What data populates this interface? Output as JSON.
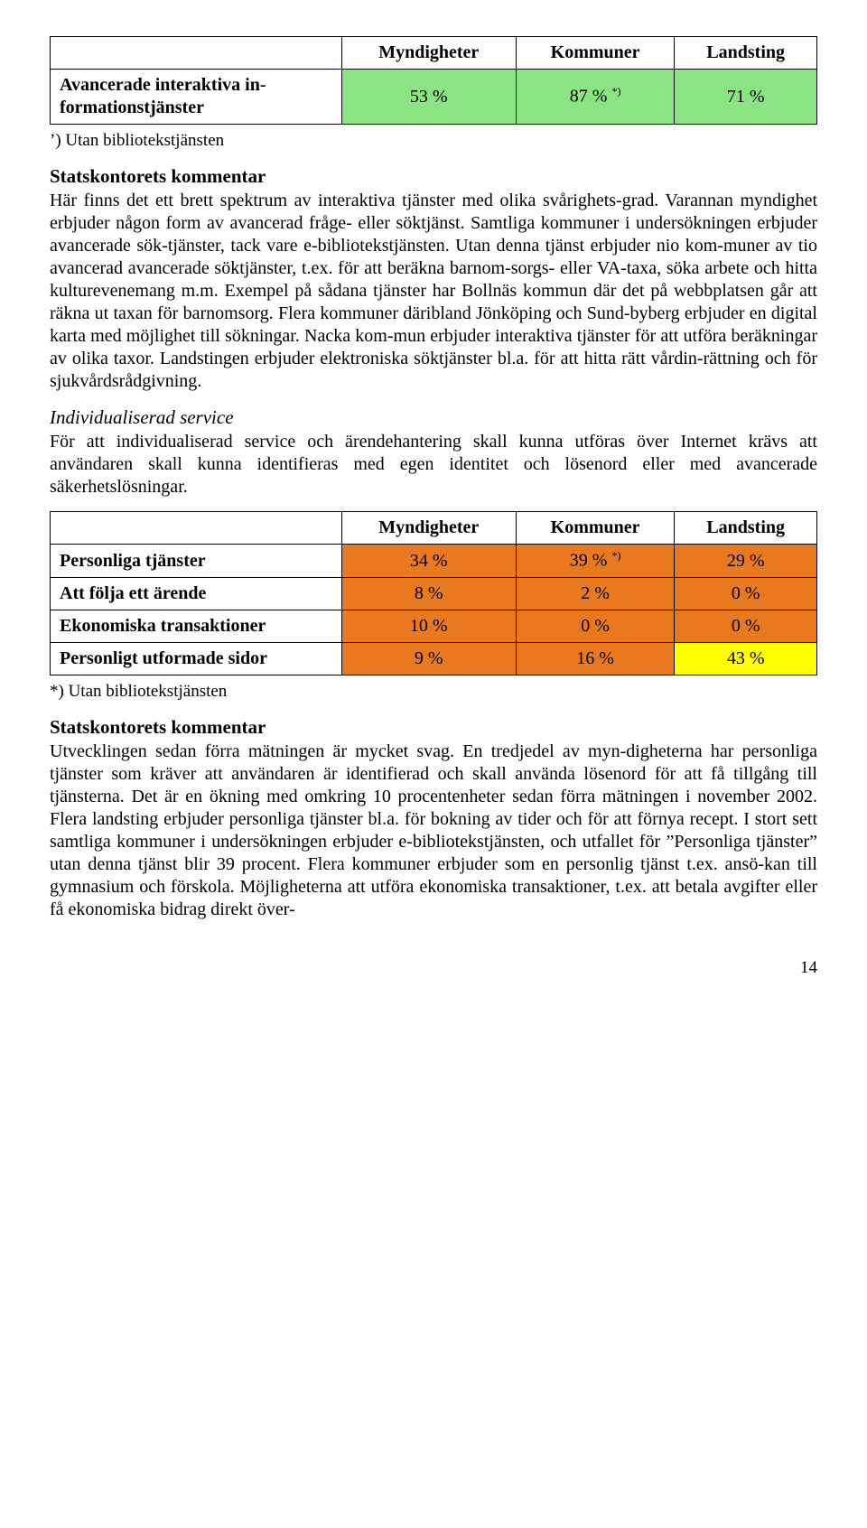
{
  "table1": {
    "headers": [
      "Myndigheter",
      "Kommuner",
      "Landsting"
    ],
    "row_label": "Avancerade interaktiva in-formationstjänster",
    "cells": [
      "53 %",
      "87 %",
      "71 %"
    ],
    "sup": "*)",
    "header_bg": "#ffffff",
    "row_bg": "#8ae482",
    "footnote": "’) Utan bibliotekstjänsten"
  },
  "comment1": {
    "heading": "Statskontorets kommentar",
    "text": "Här finns det ett brett spektrum av interaktiva tjänster med olika svårighets-grad. Varannan myndighet erbjuder någon form av avancerad fråge- eller söktjänst. Samtliga kommuner i undersökningen erbjuder avancerade sök-tjänster, tack vare e-bibliotekstjänsten. Utan denna tjänst erbjuder nio kom-muner av tio avancerad avancerade söktjänster, t.ex. för att beräkna barnom-sorgs- eller VA-taxa, söka arbete och hitta kulturevenemang m.m. Exempel på sådana tjänster har Bollnäs kommun där det på webbplatsen går att räkna ut taxan för barnomsorg. Flera kommuner däribland Jönköping och Sund-byberg erbjuder en digital karta med möjlighet till sökningar. Nacka kom-mun erbjuder interaktiva tjänster för att utföra beräkningar av olika taxor. Landstingen erbjuder elektroniska söktjänster bl.a. för att hitta rätt vårdin-rättning och för sjukvårdsrådgivning."
  },
  "section2": {
    "heading": "Individualiserad service",
    "text": "För att individualiserad service och ärendehantering skall kunna utföras över Internet krävs att användaren skall kunna identifieras med egen identitet och lösenord eller med avancerade säkerhetslösningar."
  },
  "table2": {
    "headers": [
      "Myndigheter",
      "Kommuner",
      "Landsting"
    ],
    "rows": [
      {
        "label": "Personliga tjänster",
        "cells": [
          "34 %",
          "39 %",
          "29 %"
        ],
        "colors": [
          "#e8791e",
          "#e8791e",
          "#e8791e"
        ],
        "sup_idx": 1
      },
      {
        "label": "Att följa ett ärende",
        "cells": [
          "8 %",
          "2 %",
          "0 %"
        ],
        "colors": [
          "#e8791e",
          "#e8791e",
          "#e8791e"
        ]
      },
      {
        "label": "Ekonomiska transaktioner",
        "cells": [
          "10 %",
          "0 %",
          "0 %"
        ],
        "colors": [
          "#e8791e",
          "#e8791e",
          "#e8791e"
        ]
      },
      {
        "label": "Personligt utformade sidor",
        "cells": [
          "9 %",
          "16 %",
          "43 %"
        ],
        "colors": [
          "#e8791e",
          "#e8791e",
          "#ffff00"
        ]
      }
    ],
    "sup": "*)",
    "footnote": "*) Utan bibliotekstjänsten"
  },
  "comment2": {
    "heading": "Statskontorets kommentar",
    "text": "Utvecklingen sedan förra mätningen är mycket svag. En tredjedel av myn-digheterna har personliga tjänster som kräver att användaren är identifierad och skall använda lösenord för att få tillgång till tjänsterna. Det är en ökning med omkring 10 procentenheter sedan förra mätningen i november 2002. Flera landsting erbjuder personliga tjänster bl.a. för bokning av tider och för att förnya recept. I stort sett samtliga kommuner i undersökningen erbjuder e-bibliotekstjänsten, och utfallet för ”Personliga tjänster” utan denna tjänst blir 39 procent. Flera kommuner erbjuder som en personlig tjänst t.ex. ansö-kan till gymnasium och förskola. Möjligheterna att utföra ekonomiska transaktioner, t.ex. att betala avgifter eller få ekonomiska bidrag direkt över-"
  },
  "page_number": "14"
}
